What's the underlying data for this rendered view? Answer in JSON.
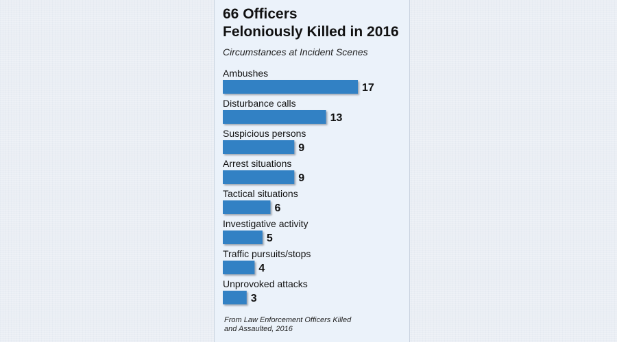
{
  "title_line1": "66 Officers",
  "title_line2": "Feloniously Killed in 2016",
  "subtitle": "Circumstances at Incident Scenes",
  "source_line1": "From Law Enforcement Officers Killed",
  "source_line2": "and Assaulted, 2016",
  "colors": {
    "bar": "#3381c4",
    "bar_shadow": "#9aa3ad",
    "text": "#111111",
    "panel": "#ebf2fa"
  },
  "chart_data": {
    "type": "bar",
    "orientation": "horizontal",
    "categories": [
      "Ambushes",
      "Disturbance calls",
      "Suspicious persons",
      "Arrest situations",
      "Tactical situations",
      "Investigative activity",
      "Traffic pursuits/stops",
      "Unprovoked attacks"
    ],
    "values": [
      17,
      13,
      9,
      9,
      6,
      5,
      4,
      3
    ],
    "value_labels": [
      "17",
      "13",
      "9",
      "9",
      "6",
      "5",
      "4",
      "3"
    ],
    "xlim": [
      0,
      17
    ],
    "grid": false,
    "legend": "none"
  }
}
